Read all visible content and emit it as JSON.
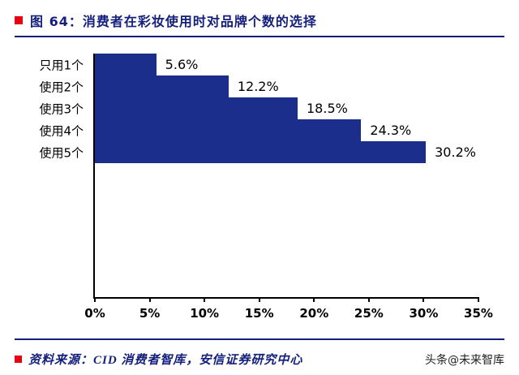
{
  "header": {
    "figure_label": "图 64：",
    "title": "图 64：消费者在彩妆使用时对品牌个数的选择"
  },
  "chart_data": {
    "type": "bar",
    "orientation": "horizontal",
    "title": "消费者在彩妆使用时对品牌个数的选择",
    "categories": [
      "只用1个",
      "使用2个",
      "使用3个",
      "使用4个",
      "使用5个"
    ],
    "values": [
      5.6,
      12.2,
      18.5,
      24.3,
      30.2
    ],
    "value_labels": [
      "5.6%",
      "12.2%",
      "18.5%",
      "24.3%",
      "30.2%"
    ],
    "x_tick_values": [
      0,
      5,
      10,
      15,
      20,
      25,
      30,
      35
    ],
    "x_tick_labels": [
      "0%",
      "5%",
      "10%",
      "15%",
      "20%",
      "25%",
      "30%",
      "35%"
    ],
    "xlim": [
      0,
      35
    ],
    "xlabel": "",
    "ylabel": "",
    "grid": false,
    "legend": "none",
    "bar_color": "#1c2e8c"
  },
  "footer": {
    "source": "资料来源：CID 消费者智库，安信证券研究中心",
    "watermark": "头条@未来智库"
  },
  "colors": {
    "accent_navy": "#131f7b",
    "marker_red": "#e60012",
    "bar": "#1c2e8c"
  }
}
